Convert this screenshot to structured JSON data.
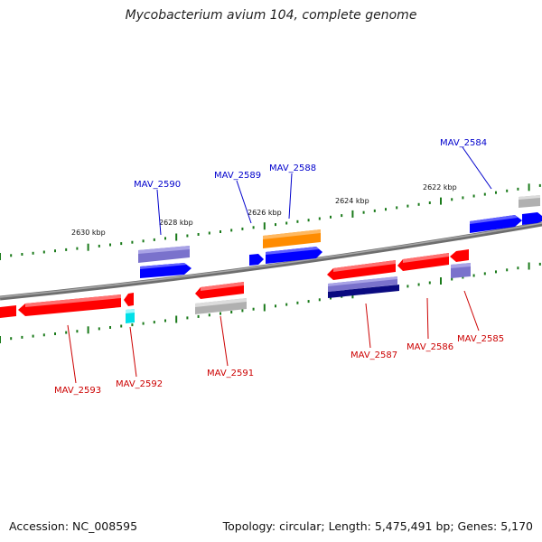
{
  "title": "Mycobacterium avium 104, complete genome",
  "footer": {
    "accession": "Accession: NC_008595",
    "stats": "Topology: circular; Length: 5,475,491 bp; Genes: 5,170"
  },
  "colors": {
    "backbone": "#808080",
    "tick": "#1a7a1a",
    "label_forward": "#0000cc",
    "label_reverse": "#cc0000",
    "red": "#ff0000",
    "blue": "#0000ff",
    "purple": "#7a72cc",
    "navy": "#0a0a80",
    "orange": "#ff8c00",
    "gray": "#b0b0b0",
    "cyan": "#00e0e8"
  },
  "scale_labels": [
    "2630 kbp",
    "2628 kbp",
    "2626 kbp",
    "2624 kbp",
    "2622 kbp"
  ],
  "gene_labels_forward": [
    "MAV_2590",
    "MAV_2589",
    "MAV_2588",
    "MAV_2584"
  ],
  "gene_labels_reverse": [
    "MAV_2593",
    "MAV_2592",
    "MAV_2591",
    "MAV_2587",
    "MAV_2586",
    "MAV_2585"
  ]
}
